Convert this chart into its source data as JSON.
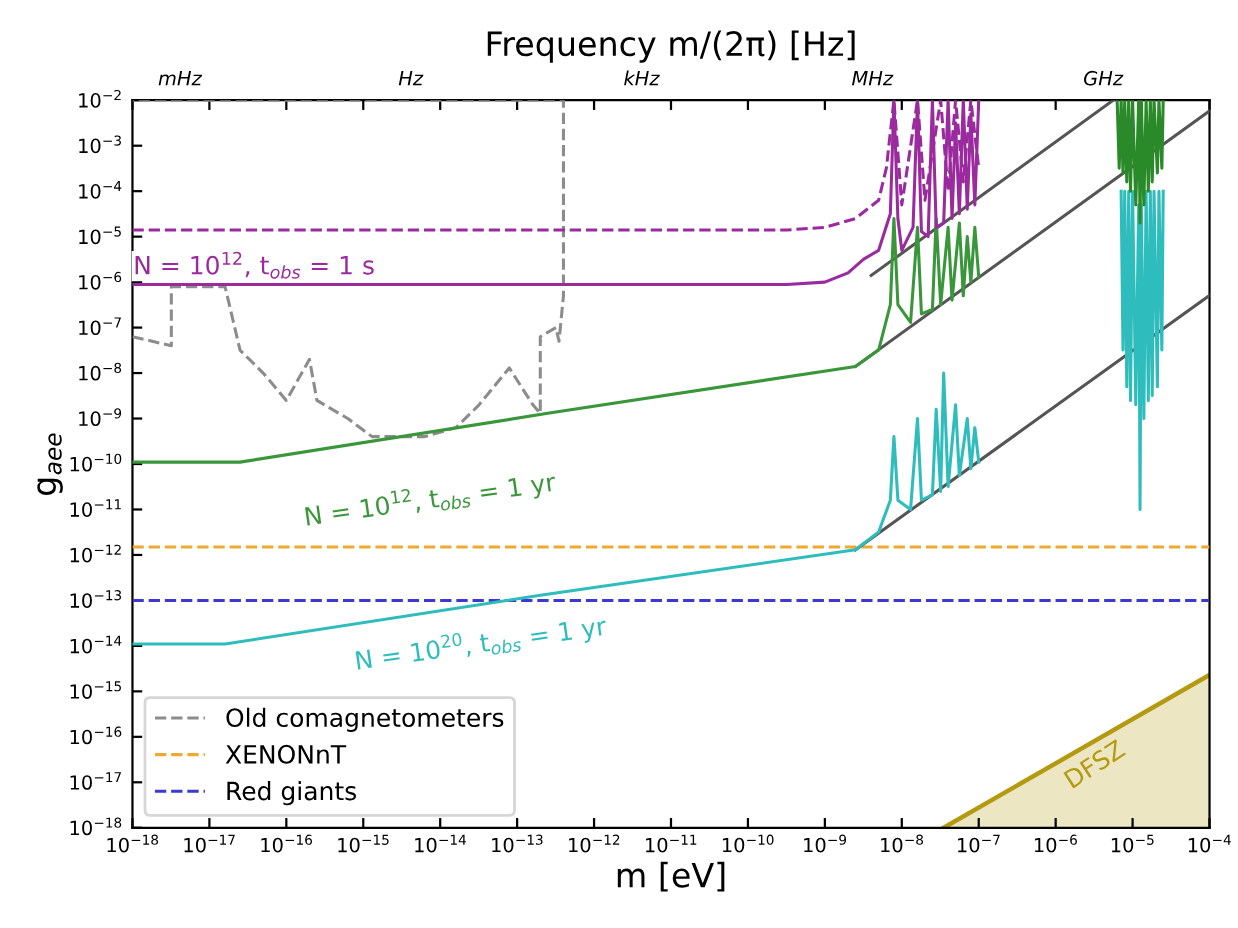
{
  "chart_data": {
    "type": "line",
    "log": "xy",
    "xlabel": "m [eV]",
    "ylabel": "g$_{aee}$",
    "title": "Frequency m/(2π) [Hz]",
    "xlim": [
      1e-18,
      0.0001
    ],
    "ylim": [
      1e-18,
      0.01
    ],
    "xticks": [
      {
        "value": 1e-18,
        "label": "10$^{−18}$"
      },
      {
        "value": 1e-17,
        "label": "10$^{−17}$"
      },
      {
        "value": 1e-16,
        "label": "10$^{−16}$"
      },
      {
        "value": 1e-15,
        "label": "10$^{−15}$"
      },
      {
        "value": 1e-14,
        "label": "10$^{−14}$"
      },
      {
        "value": 1e-13,
        "label": "10$^{−13}$"
      },
      {
        "value": 1e-12,
        "label": "10$^{−12}$"
      },
      {
        "value": 1e-11,
        "label": "10$^{−11}$"
      },
      {
        "value": 1e-10,
        "label": "10$^{−10}$"
      },
      {
        "value": 1e-09,
        "label": "10$^{−9}$"
      },
      {
        "value": 1e-08,
        "label": "10$^{−8}$"
      },
      {
        "value": 1e-07,
        "label": "10$^{−7}$"
      },
      {
        "value": 1e-06,
        "label": "10$^{−6}$"
      },
      {
        "value": 1e-05,
        "label": "10$^{−5}$"
      },
      {
        "value": 0.0001,
        "label": "10$^{−4}$"
      }
    ],
    "yticks": [
      {
        "value": 1e-18,
        "label": "10$^{−18}$"
      },
      {
        "value": 1e-17,
        "label": "10$^{−17}$"
      },
      {
        "value": 1e-16,
        "label": "10$^{−16}$"
      },
      {
        "value": 1e-15,
        "label": "10$^{−15}$"
      },
      {
        "value": 1e-14,
        "label": "10$^{−14}$"
      },
      {
        "value": 1e-13,
        "label": "10$^{−13}$"
      },
      {
        "value": 1e-12,
        "label": "10$^{−12}$"
      },
      {
        "value": 1e-11,
        "label": "10$^{−11}$"
      },
      {
        "value": 1e-10,
        "label": "10$^{−10}$"
      },
      {
        "value": 1e-09,
        "label": "10$^{−9}$"
      },
      {
        "value": 1e-08,
        "label": "10$^{−8}$"
      },
      {
        "value": 1e-07,
        "label": "10$^{−7}$"
      },
      {
        "value": 1e-06,
        "label": "10$^{−6}$"
      },
      {
        "value": 1e-05,
        "label": "10$^{−5}$"
      },
      {
        "value": 0.0001,
        "label": "10$^{−4}$"
      },
      {
        "value": 0.001,
        "label": "10$^{−3}$"
      },
      {
        "value": 0.01,
        "label": "10$^{−2}$"
      }
    ],
    "legend": "bottom left",
    "grid": false,
    "series": [
      {
        "color": "#9a2a9e",
        "line_style": "solid",
        "x": [
          1e-18,
          3.2e-10,
          1e-09,
          2e-09,
          3.2e-09,
          5e-09,
          7.1e-09,
          7.9e-09,
          8.9e-09,
          1e-08,
          1.4e-08,
          1.6e-08,
          1.8e-08,
          2.2e-08,
          2.5e-08,
          2.8e-08,
          3.5e-08,
          4e-08,
          4.5e-08,
          5e-08,
          5.6e-08,
          6.3e-08,
          7.1e-08,
          7.9e-08,
          8.9e-08,
          1e-07
        ],
        "values": [
          8.9e-07,
          8.9e-07,
          1e-06,
          1.6e-06,
          3.2e-06,
          5e-06,
          3.2e-05,
          0.01,
          2.5e-05,
          5e-06,
          1.6e-05,
          0.01,
          1.3e-05,
          1e-05,
          0.01,
          1.6e-05,
          2e-05,
          0.01,
          2.5e-05,
          0.0032,
          3.2e-05,
          0.01,
          4e-05,
          0.005,
          5e-05,
          0.01
        ]
      },
      {
        "color": "#9a2a9e",
        "line_style": "dashed",
        "x": [
          1e-18,
          3.2e-10,
          1e-09,
          2.5e-09,
          5e-09,
          6.3e-09,
          7.9e-09,
          1e-08,
          1.6e-08,
          2e-08,
          3.2e-08,
          4e-08,
          5e-08,
          6.3e-08,
          7.9e-08,
          1e-07
        ],
        "values": [
          1.4e-05,
          1.4e-05,
          1.6e-05,
          2.5e-05,
          6.3e-05,
          0.00032,
          0.01,
          5e-05,
          0.01,
          6.3e-05,
          0.01,
          0.0001,
          0.01,
          0.00016,
          0.01,
          0.00032
        ]
      },
      {
        "color": "#3a963a",
        "line_style": "solid",
        "x": [
          1e-18,
          2.5e-17,
          2.5e-13,
          2.5e-09,
          5e-09,
          7.1e-09,
          7.9e-09,
          8.9e-09,
          1.3e-08,
          1.6e-08,
          1.8e-08,
          2.5e-08,
          2.8e-08,
          3.2e-08,
          4e-08,
          4.5e-08,
          5.6e-08,
          6.3e-08,
          7.1e-08,
          7.9e-08,
          8.9e-08,
          1e-07
        ],
        "values": [
          1.1e-10,
          1.1e-10,
          1.3e-09,
          1.4e-08,
          3.2e-08,
          3.2e-07,
          2.5e-05,
          3.2e-07,
          1.3e-07,
          1.6e-05,
          2e-07,
          2.5e-07,
          2.5e-05,
          3.2e-07,
          1.6e-05,
          4e-07,
          2e-05,
          5e-07,
          1e-05,
          1e-06,
          1.6e-05,
          1.3e-06
        ]
      },
      {
        "color": "#2a8a2a",
        "line_style": "solid",
        "x": [
          6.3e-06,
          6.7e-06,
          7.1e-06,
          7.5e-06,
          7.9e-06,
          8.4e-06,
          8.9e-06,
          9.4e-06,
          1e-05,
          1.1e-05,
          1.2e-05,
          1.25e-05,
          1.3e-05,
          1.4e-05,
          1.5e-05,
          1.6e-05,
          1.7e-05,
          1.8e-05,
          1.9e-05,
          2.1e-05,
          2.2e-05,
          2.4e-05,
          2.5e-05
        ],
        "values": [
          0.01,
          0.00032,
          0.01,
          0.00025,
          0.01,
          0.00016,
          0.01,
          0.0001,
          0.01,
          5e-05,
          0.01,
          2e-05,
          0.01,
          5e-05,
          0.01,
          0.0001,
          0.01,
          0.00016,
          0.01,
          0.00025,
          0.01,
          0.00032,
          0.01
        ]
      },
      {
        "color": "#2fbcbc",
        "line_style": "solid",
        "x": [
          1e-18,
          1.6e-17,
          2e-13,
          2.5e-09,
          5e-09,
          7.1e-09,
          7.9e-09,
          8.9e-09,
          1.3e-08,
          1.6e-08,
          1.8e-08,
          2.5e-08,
          2.8e-08,
          3.2e-08,
          3.5e-08,
          4e-08,
          5e-08,
          5.6e-08,
          7.1e-08,
          7.9e-08,
          8.9e-08,
          1e-07
        ],
        "values": [
          1.1e-14,
          1.1e-14,
          1.3e-13,
          1.3e-12,
          3.2e-12,
          1.6e-11,
          4e-10,
          1.6e-11,
          1e-11,
          1e-09,
          1.6e-11,
          2.1e-11,
          1.6e-09,
          2.5e-11,
          1e-08,
          3.2e-11,
          2e-09,
          5.6e-11,
          1e-09,
          7.9e-11,
          6.3e-10,
          1.1e-10
        ]
      },
      {
        "color": "#2fbcbc",
        "line_style": "solid",
        "x": [
          7.1e-06,
          7.5e-06,
          7.9e-06,
          8.4e-06,
          8.9e-06,
          9.4e-06,
          1e-05,
          1.1e-05,
          1.2e-05,
          1.25e-05,
          1.3e-05,
          1.4e-05,
          1.5e-05,
          1.6e-05,
          1.7e-05,
          1.8e-05,
          1.9e-05,
          2.1e-05,
          2.2e-05,
          2.4e-05,
          2.5e-05
        ],
        "values": [
          0.0001,
          3.2e-08,
          0.0001,
          5e-09,
          0.0001,
          2.5e-09,
          0.0001,
          2e-09,
          5e-05,
          1e-11,
          5e-05,
          1e-09,
          0.0001,
          2.5e-09,
          0.0001,
          3.2e-09,
          0.0001,
          5e-09,
          0.0001,
          3.2e-08,
          0.0001
        ]
      },
      {
        "color": "#555555",
        "line_style": "solid",
        "x": [
          4e-09,
          5.6e-06
        ],
        "values": [
          1.4e-06,
          0.01
        ]
      },
      {
        "color": "#555555",
        "line_style": "solid",
        "x": [
          2.5e-09,
          0.0001
        ],
        "values": [
          1.4e-08,
          0.0058
        ]
      },
      {
        "color": "#555555",
        "line_style": "solid",
        "x": [
          2.5e-09,
          0.0001
        ],
        "values": [
          1.3e-12,
          5.1e-07
        ]
      },
      {
        "name": "Old comagnetometers",
        "color": "#8c8c8c",
        "line_style": "dashed",
        "x": [
          1e-18,
          3.2e-18,
          3.2e-18,
          1.6e-17,
          2.5e-17,
          5e-17,
          1e-16,
          2e-16,
          2.5e-16,
          6.3e-16,
          1.3e-15,
          6.3e-15,
          1.6e-14,
          3.2e-14,
          7.9e-14,
          1.6e-13,
          2e-13,
          2e-13,
          3.2e-13,
          3.5e-13,
          4e-13,
          4e-13,
          1e-18
        ],
        "values": [
          6.3e-08,
          4e-08,
          7.9e-07,
          7.9e-07,
          3.2e-08,
          1e-08,
          2.5e-09,
          2e-08,
          2.5e-09,
          1e-09,
          4e-10,
          4e-10,
          6.3e-10,
          2e-09,
          1.3e-08,
          2e-09,
          1.3e-09,
          6.3e-08,
          1e-07,
          5e-08,
          5e-07,
          0.01,
          0.01
        ]
      },
      {
        "name": "XENONnT",
        "color": "#f0a830",
        "line_style": "dashed",
        "x": [
          1e-18,
          0.0001
        ],
        "values": [
          1.5e-12,
          1.5e-12
        ]
      },
      {
        "name": "Red giants",
        "color": "#3a3ad0",
        "line_style": "dashed",
        "x": [
          1e-18,
          0.0001
        ],
        "values": [
          1e-13,
          1e-13
        ]
      },
      {
        "type": "area",
        "color": "#b39a10",
        "line_style": "solid",
        "x": [
          3.5e-08,
          0.0001
        ],
        "values": [
          1e-18,
          2.3e-15
        ]
      }
    ],
    "annotations": [
      "N = 10$^{12}$, t$_{obs}$ = 1 s",
      "N = 10$^{12}$, t$_{obs}$ = 1 yr",
      "N = 10$^{20}$, t$_{obs}$ = 1 yr",
      "DFSZ",
      "mHz",
      "Hz",
      "kHz",
      "MHz",
      "GHz"
    ]
  }
}
